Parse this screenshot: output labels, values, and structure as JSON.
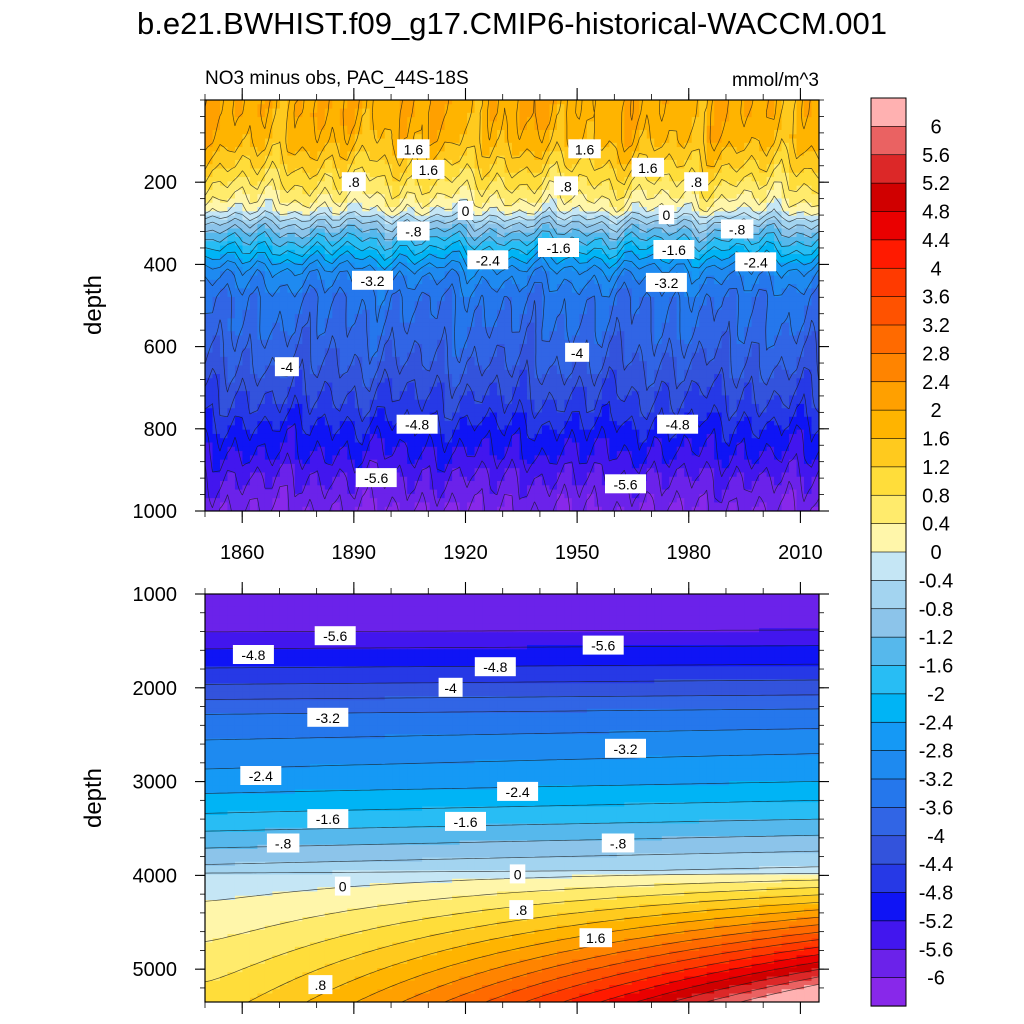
{
  "figure": {
    "title": "b.e21.BWHIST.f09_g17.CMIP6-historical-WACCM.001"
  },
  "chart_data": [
    {
      "type": "heatmap",
      "panel": "upper",
      "title": "NO3 minus obs, PAC_44S-18S",
      "units": "mmol/m^3",
      "xlabel": "",
      "ylabel": "depth",
      "xlim": [
        1850,
        2015
      ],
      "ylim": [
        0,
        1000
      ],
      "y_reversed": true,
      "xticks": [
        1860,
        1890,
        1920,
        1950,
        1980,
        2010
      ],
      "yticks": [
        200,
        400,
        600,
        800,
        1000
      ],
      "depth_profile": [
        {
          "depth": 30,
          "value": 1.9
        },
        {
          "depth": 100,
          "value": 1.7
        },
        {
          "depth": 160,
          "value": 1.2
        },
        {
          "depth": 200,
          "value": 0.8
        },
        {
          "depth": 240,
          "value": 0.4
        },
        {
          "depth": 270,
          "value": 0.0
        },
        {
          "depth": 300,
          "value": -0.8
        },
        {
          "depth": 330,
          "value": -1.4
        },
        {
          "depth": 370,
          "value": -2.1
        },
        {
          "depth": 420,
          "value": -3.0
        },
        {
          "depth": 480,
          "value": -3.5
        },
        {
          "depth": 560,
          "value": -3.7
        },
        {
          "depth": 640,
          "value": -4.0
        },
        {
          "depth": 700,
          "value": -4.3
        },
        {
          "depth": 760,
          "value": -4.6
        },
        {
          "depth": 800,
          "value": -4.9
        },
        {
          "depth": 860,
          "value": -5.2
        },
        {
          "depth": 920,
          "value": -5.6
        },
        {
          "depth": 1000,
          "value": -6.0
        }
      ],
      "contour_labels": [
        {
          "text": "1.6",
          "x": 1906,
          "depth": 120
        },
        {
          "text": "1.6",
          "x": 1952,
          "depth": 120
        },
        {
          "text": "1.6",
          "x": 1910,
          "depth": 170
        },
        {
          "text": "1.6",
          "x": 1969,
          "depth": 165
        },
        {
          "text": ".8",
          "x": 1890,
          "depth": 200
        },
        {
          "text": ".8",
          "x": 1947,
          "depth": 210
        },
        {
          "text": ".8",
          "x": 1982,
          "depth": 200
        },
        {
          "text": "0",
          "x": 1920,
          "depth": 270
        },
        {
          "text": "0",
          "x": 1974,
          "depth": 280
        },
        {
          "text": "-.8",
          "x": 1906,
          "depth": 320
        },
        {
          "text": "-.8",
          "x": 1993,
          "depth": 315
        },
        {
          "text": "-1.6",
          "x": 1945,
          "depth": 360
        },
        {
          "text": "-1.6",
          "x": 1976,
          "depth": 365
        },
        {
          "text": "-2.4",
          "x": 1926,
          "depth": 390
        },
        {
          "text": "-2.4",
          "x": 1998,
          "depth": 395
        },
        {
          "text": "-3.2",
          "x": 1895,
          "depth": 440
        },
        {
          "text": "-3.2",
          "x": 1974,
          "depth": 445
        },
        {
          "text": "-4",
          "x": 1872,
          "depth": 650
        },
        {
          "text": "-4",
          "x": 1950,
          "depth": 615
        },
        {
          "text": "-4.8",
          "x": 1907,
          "depth": 790
        },
        {
          "text": "-4.8",
          "x": 1977,
          "depth": 790
        },
        {
          "text": "-5.6",
          "x": 1896,
          "depth": 920
        },
        {
          "text": "-5.6",
          "x": 1963,
          "depth": 935
        }
      ]
    },
    {
      "type": "heatmap",
      "panel": "lower",
      "title": "",
      "xlabel": "",
      "ylabel": "depth",
      "xlim": [
        1850,
        2015
      ],
      "ylim": [
        1000,
        5350
      ],
      "y_reversed": true,
      "xticks": [
        1860,
        1890,
        1920,
        1950,
        1980,
        2010
      ],
      "yticks": [
        1000,
        2000,
        3000,
        4000,
        5000
      ],
      "depth_profile": [
        {
          "depth": 1000,
          "value": -6.0
        },
        {
          "depth": 1300,
          "value": -5.8
        },
        {
          "depth": 1550,
          "value": -5.2
        },
        {
          "depth": 1750,
          "value": -4.8
        },
        {
          "depth": 2000,
          "value": -4.2
        },
        {
          "depth": 2300,
          "value": -3.4
        },
        {
          "depth": 2700,
          "value": -2.8
        },
        {
          "depth": 3000,
          "value": -2.4
        },
        {
          "depth": 3400,
          "value": -1.6
        },
        {
          "depth": 3700,
          "value": -0.9
        },
        {
          "depth": 3950,
          "value": -0.3
        }
      ],
      "contour_labels": [
        {
          "text": "-5.6",
          "x": 1885,
          "depth": 1450
        },
        {
          "text": "-5.6",
          "x": 1957,
          "depth": 1550
        },
        {
          "text": "-4.8",
          "x": 1863,
          "depth": 1650
        },
        {
          "text": "-4.8",
          "x": 1928,
          "depth": 1780
        },
        {
          "text": "-4",
          "x": 1916,
          "depth": 2000
        },
        {
          "text": "-3.2",
          "x": 1883,
          "depth": 2320
        },
        {
          "text": "-3.2",
          "x": 1963,
          "depth": 2650
        },
        {
          "text": "-2.4",
          "x": 1865,
          "depth": 2940
        },
        {
          "text": "-2.4",
          "x": 1934,
          "depth": 3110
        },
        {
          "text": "-1.6",
          "x": 1883,
          "depth": 3400
        },
        {
          "text": "-1.6",
          "x": 1920,
          "depth": 3430
        },
        {
          "text": "-.8",
          "x": 1871,
          "depth": 3660
        },
        {
          "text": "-.8",
          "x": 1961,
          "depth": 3660
        },
        {
          "text": "0",
          "x": 1887,
          "depth": 4120
        },
        {
          "text": "0",
          "x": 1934,
          "depth": 3990
        },
        {
          "text": ".8",
          "x": 1935,
          "depth": 4370
        },
        {
          "text": "1.6",
          "x": 1955,
          "depth": 4670
        },
        {
          "text": ".8",
          "x": 1881,
          "depth": 5170
        }
      ]
    }
  ],
  "colorbar": {
    "labels": [
      "6",
      "5.6",
      "5.2",
      "4.8",
      "4.4",
      "4",
      "3.6",
      "3.2",
      "2.8",
      "2.4",
      "2",
      "1.6",
      "1.2",
      "0.8",
      "0.4",
      "0",
      "-0.4",
      "-0.8",
      "-1.2",
      "-1.6",
      "-2",
      "-2.4",
      "-2.8",
      "-3.2",
      "-3.6",
      "-4",
      "-4.4",
      "-4.8",
      "-5.2",
      "-5.6",
      "-6"
    ],
    "colors": [
      "#ffb1b1",
      "#ea6262",
      "#dc2828",
      "#d00000",
      "#ea0000",
      "#ff1a00",
      "#ff3a00",
      "#ff5200",
      "#ff6a00",
      "#ff8400",
      "#ffa000",
      "#ffb400",
      "#ffca1e",
      "#ffdd3a",
      "#ffeb6c",
      "#fff6aa",
      "#c5e6f5",
      "#a3d4f0",
      "#8cc4ea",
      "#56b8ec",
      "#28bdf4",
      "#00b4f5",
      "#1599f5",
      "#1e8af0",
      "#2577ec",
      "#3165e5",
      "#3353dc",
      "#2639e6",
      "#0f14f5",
      "#4216ee",
      "#6b22ea",
      "#8828ea"
    ],
    "min": -6.4,
    "max": 6.4,
    "step": 0.4
  }
}
